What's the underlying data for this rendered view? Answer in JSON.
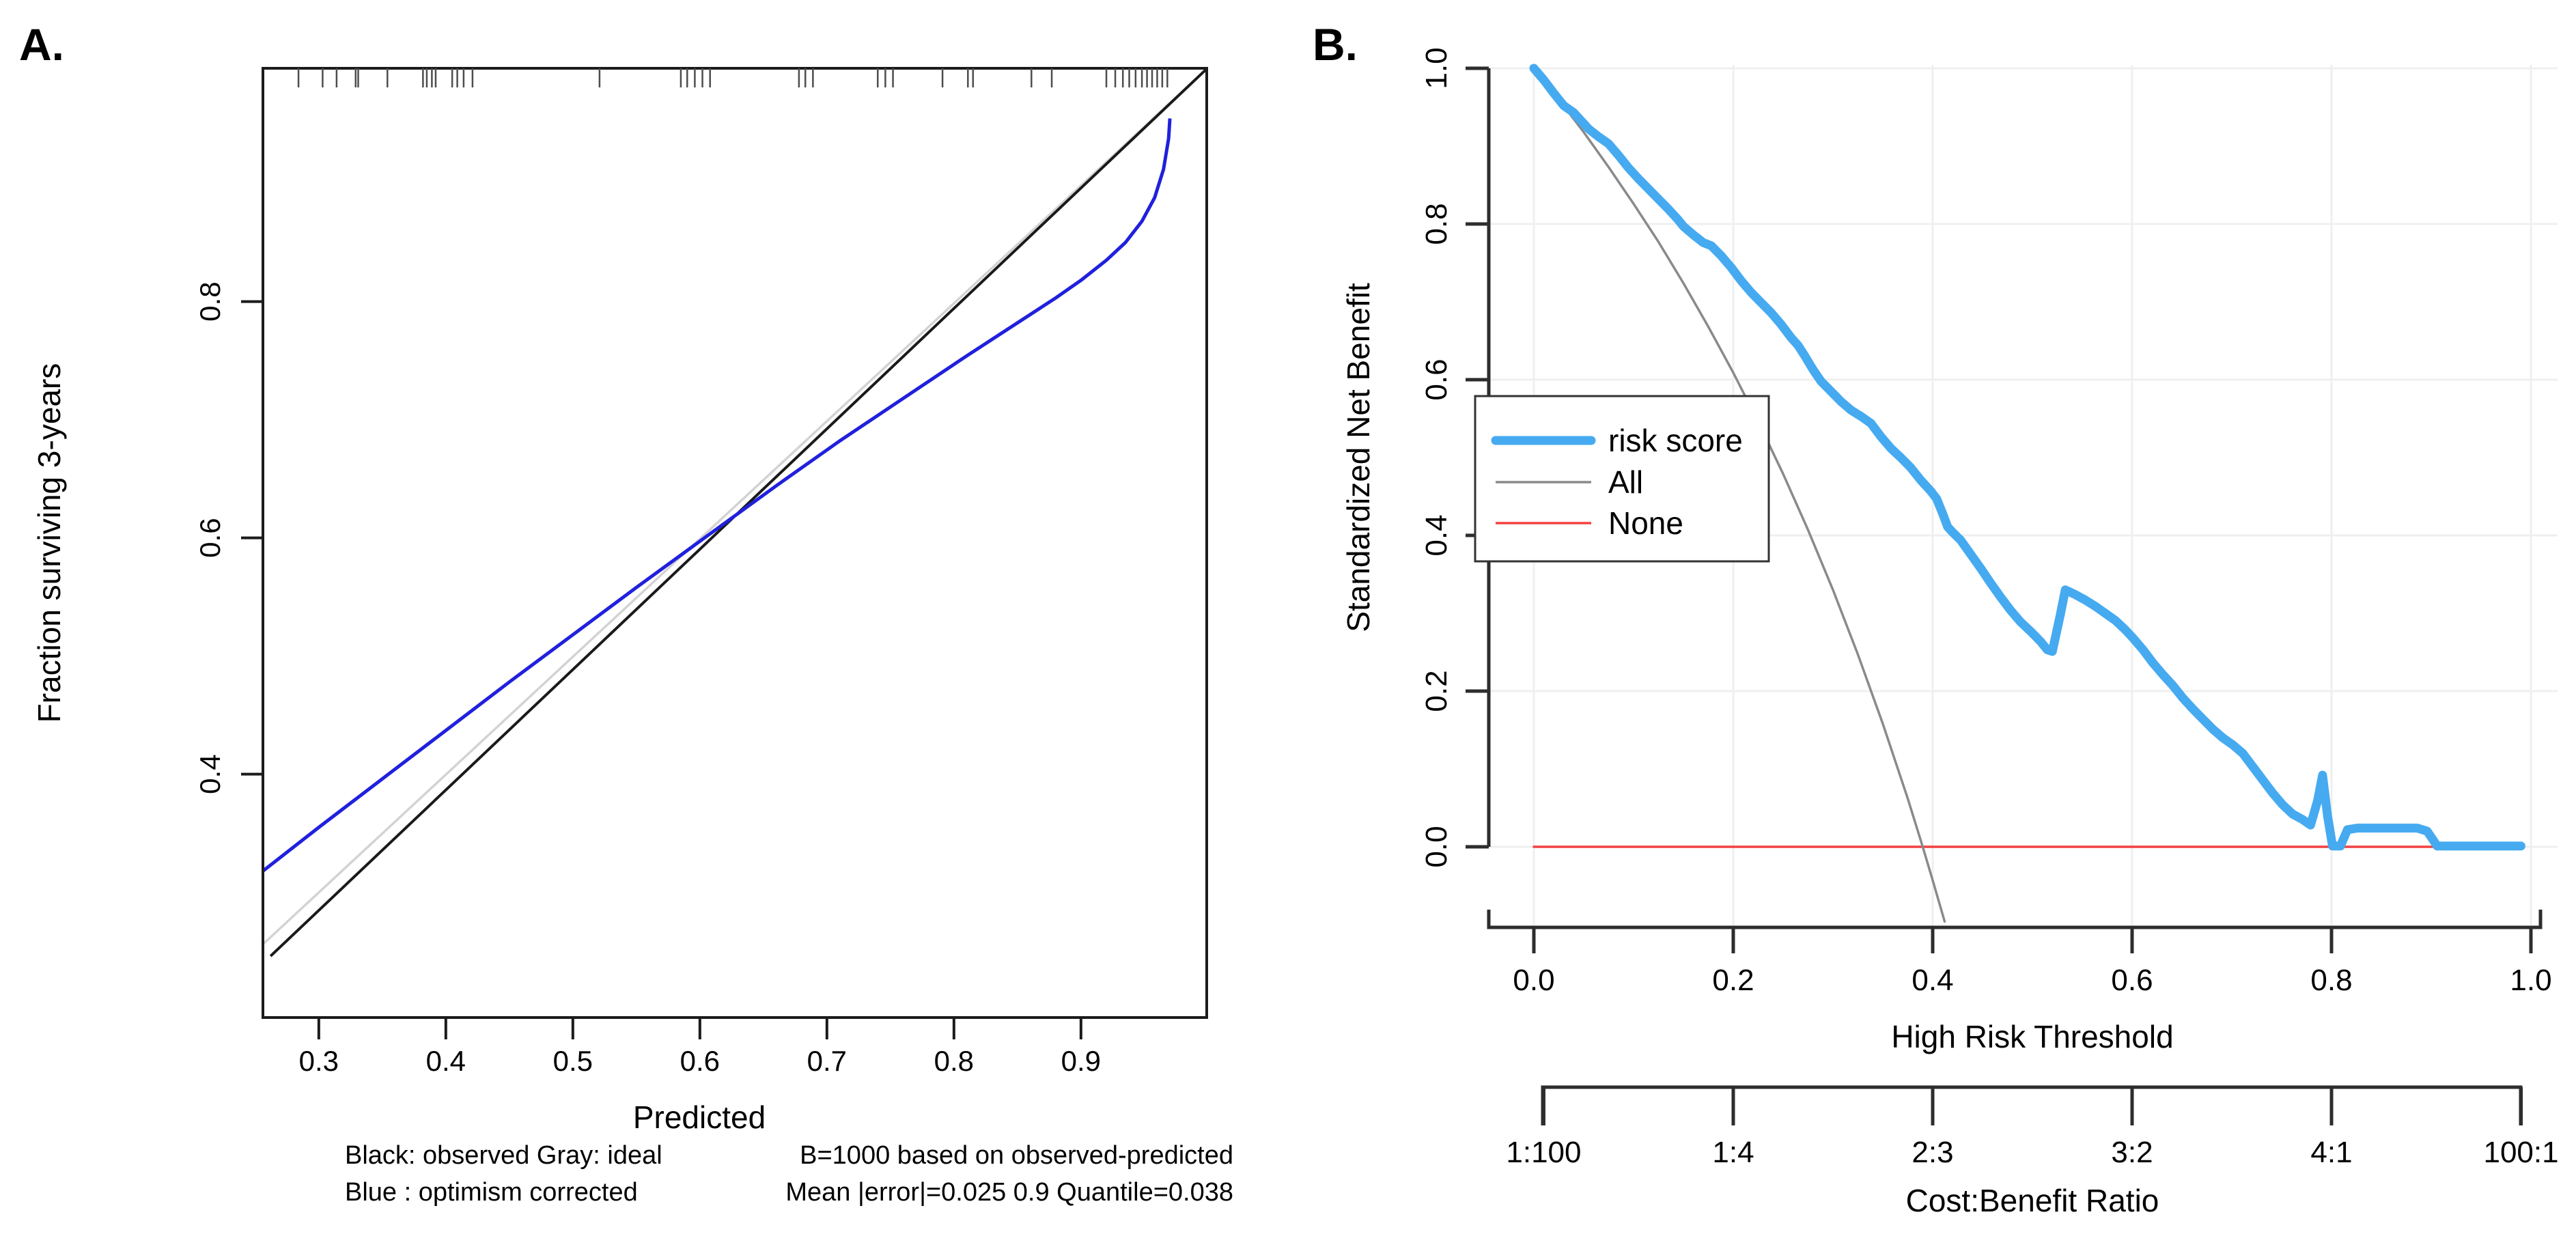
{
  "figure": {
    "panel_a_label": "A.",
    "panel_b_label": "B."
  },
  "chart_data": [
    {
      "id": "calibration_plot",
      "type": "line",
      "panel": "A.",
      "xlabel": "Predicted",
      "ylabel": "Fraction surviving 3-years",
      "x_ticks": [
        0.3,
        0.4,
        0.5,
        0.6,
        0.7,
        0.8,
        0.9
      ],
      "y_ticks": [
        0.4,
        0.6,
        0.8
      ],
      "x_range": [
        0.256,
        0.999
      ],
      "y_range": [
        0.194,
        0.997
      ],
      "grid": false,
      "captions": {
        "left_line1": "Black: observed  Gray: ideal",
        "left_line2": "Blue : optimism corrected",
        "right_line1": "B=1000 based on observed-predicted",
        "right_line2": "Mean |error|=0.025  0.9 Quantile=0.038"
      },
      "rug_x": [
        0.284,
        0.303,
        0.314,
        0.329,
        0.331,
        0.354,
        0.382,
        0.385,
        0.389,
        0.392,
        0.405,
        0.409,
        0.414,
        0.421,
        0.521,
        0.585,
        0.59,
        0.596,
        0.602,
        0.608,
        0.678,
        0.683,
        0.689,
        0.74,
        0.746,
        0.752,
        0.791,
        0.811,
        0.815,
        0.861,
        0.877,
        0.92,
        0.927,
        0.933,
        0.938,
        0.943,
        0.948,
        0.952,
        0.956,
        0.96,
        0.964,
        0.968
      ],
      "series": [
        {
          "name": "ideal",
          "color": "#d3d3d3",
          "width": 3.5,
          "points": [
            [
              0.256,
              0.256
            ],
            [
              0.999,
              0.997
            ]
          ]
        },
        {
          "name": "observed",
          "color": "#1a1a1a",
          "width": 4,
          "points": [
            [
              0.262,
              0.246
            ],
            [
              0.999,
              0.997
            ]
          ]
        },
        {
          "name": "optimism corrected",
          "color": "#2020dd",
          "width": 5,
          "points": [
            [
              0.256,
              0.318
            ],
            [
              0.3,
              0.355
            ],
            [
              0.35,
              0.396
            ],
            [
              0.4,
              0.437
            ],
            [
              0.45,
              0.478
            ],
            [
              0.5,
              0.518
            ],
            [
              0.55,
              0.558
            ],
            [
              0.61,
              0.605
            ],
            [
              0.66,
              0.644
            ],
            [
              0.71,
              0.682
            ],
            [
              0.76,
              0.718
            ],
            [
              0.81,
              0.754
            ],
            [
              0.85,
              0.782
            ],
            [
              0.88,
              0.803
            ],
            [
              0.9,
              0.818
            ],
            [
              0.92,
              0.835
            ],
            [
              0.935,
              0.85
            ],
            [
              0.948,
              0.868
            ],
            [
              0.958,
              0.888
            ],
            [
              0.965,
              0.912
            ],
            [
              0.969,
              0.938
            ],
            [
              0.97,
              0.955
            ]
          ]
        }
      ]
    },
    {
      "id": "decision_curve_analysis",
      "type": "line",
      "panel": "B.",
      "xlabel": "High Risk Threshold",
      "ylabel": "Standardized Net Benefit",
      "x_ticks": [
        0.0,
        0.2,
        0.4,
        0.6,
        0.8,
        1.0
      ],
      "y_ticks": [
        0.0,
        0.2,
        0.4,
        0.6,
        0.8,
        1.0
      ],
      "x_range": [
        0.0,
        1.0
      ],
      "y_range": [
        -0.1,
        1.0
      ],
      "grid": true,
      "secondary_axis": {
        "label": "Cost:Benefit Ratio",
        "ticks": [
          {
            "pos": 0.0099,
            "label": "1:100"
          },
          {
            "pos": 0.2,
            "label": "1:4"
          },
          {
            "pos": 0.4,
            "label": "2:3"
          },
          {
            "pos": 0.6,
            "label": "3:2"
          },
          {
            "pos": 0.8,
            "label": "4:1"
          },
          {
            "pos": 0.9901,
            "label": "100:1"
          }
        ]
      },
      "legend": {
        "position": "left-middle",
        "entries": [
          {
            "label": "risk score",
            "color": "#46aaf0",
            "width": 13
          },
          {
            "label": "All",
            "color": "#8a8a8a",
            "width": 3.5
          },
          {
            "label": "None",
            "color": "#f24141",
            "width": 3.5
          }
        ]
      },
      "series": [
        {
          "name": "None",
          "color": "#f24141",
          "width": 3.5,
          "points": [
            [
              0.0,
              0.0
            ],
            [
              0.99,
              0.0
            ]
          ]
        },
        {
          "name": "All",
          "color": "#8a8a8a",
          "width": 3.5,
          "points": [
            [
              0.0,
              1.0
            ],
            [
              0.025,
              0.96
            ],
            [
              0.05,
              0.918
            ],
            [
              0.075,
              0.873
            ],
            [
              0.1,
              0.826
            ],
            [
              0.125,
              0.777
            ],
            [
              0.15,
              0.724
            ],
            [
              0.175,
              0.668
            ],
            [
              0.2,
              0.609
            ],
            [
              0.225,
              0.546
            ],
            [
              0.25,
              0.479
            ],
            [
              0.275,
              0.407
            ],
            [
              0.3,
              0.33
            ],
            [
              0.325,
              0.247
            ],
            [
              0.35,
              0.158
            ],
            [
              0.375,
              0.062
            ],
            [
              0.39,
              0.0
            ],
            [
              0.4,
              -0.043
            ],
            [
              0.412,
              -0.096
            ]
          ]
        },
        {
          "name": "risk score",
          "color": "#46aaf0",
          "width": 13,
          "points": [
            [
              0.0,
              1.0
            ],
            [
              0.01,
              0.985
            ],
            [
              0.02,
              0.968
            ],
            [
              0.03,
              0.952
            ],
            [
              0.04,
              0.943
            ],
            [
              0.05,
              0.929
            ],
            [
              0.055,
              0.922
            ],
            [
              0.065,
              0.912
            ],
            [
              0.075,
              0.903
            ],
            [
              0.085,
              0.888
            ],
            [
              0.095,
              0.872
            ],
            [
              0.105,
              0.858
            ],
            [
              0.115,
              0.845
            ],
            [
              0.125,
              0.832
            ],
            [
              0.135,
              0.819
            ],
            [
              0.145,
              0.805
            ],
            [
              0.15,
              0.797
            ],
            [
              0.16,
              0.786
            ],
            [
              0.17,
              0.776
            ],
            [
              0.178,
              0.772
            ],
            [
              0.188,
              0.759
            ],
            [
              0.198,
              0.744
            ],
            [
              0.208,
              0.727
            ],
            [
              0.218,
              0.712
            ],
            [
              0.228,
              0.699
            ],
            [
              0.238,
              0.686
            ],
            [
              0.248,
              0.671
            ],
            [
              0.258,
              0.654
            ],
            [
              0.265,
              0.644
            ],
            [
              0.272,
              0.63
            ],
            [
              0.28,
              0.613
            ],
            [
              0.288,
              0.598
            ],
            [
              0.298,
              0.585
            ],
            [
              0.308,
              0.572
            ],
            [
              0.318,
              0.561
            ],
            [
              0.328,
              0.553
            ],
            [
              0.338,
              0.544
            ],
            [
              0.348,
              0.527
            ],
            [
              0.358,
              0.512
            ],
            [
              0.368,
              0.5
            ],
            [
              0.378,
              0.487
            ],
            [
              0.388,
              0.471
            ],
            [
              0.398,
              0.457
            ],
            [
              0.404,
              0.447
            ],
            [
              0.41,
              0.428
            ],
            [
              0.415,
              0.411
            ],
            [
              0.42,
              0.404
            ],
            [
              0.428,
              0.394
            ],
            [
              0.438,
              0.376
            ],
            [
              0.448,
              0.358
            ],
            [
              0.458,
              0.339
            ],
            [
              0.468,
              0.321
            ],
            [
              0.478,
              0.304
            ],
            [
              0.488,
              0.289
            ],
            [
              0.498,
              0.277
            ],
            [
              0.508,
              0.264
            ],
            [
              0.515,
              0.253
            ],
            [
              0.52,
              0.251
            ],
            [
              0.528,
              0.298
            ],
            [
              0.533,
              0.33
            ],
            [
              0.543,
              0.324
            ],
            [
              0.553,
              0.317
            ],
            [
              0.563,
              0.309
            ],
            [
              0.573,
              0.3
            ],
            [
              0.583,
              0.291
            ],
            [
              0.593,
              0.279
            ],
            [
              0.601,
              0.268
            ],
            [
              0.611,
              0.253
            ],
            [
              0.621,
              0.236
            ],
            [
              0.631,
              0.221
            ],
            [
              0.641,
              0.207
            ],
            [
              0.651,
              0.191
            ],
            [
              0.661,
              0.177
            ],
            [
              0.671,
              0.164
            ],
            [
              0.681,
              0.151
            ],
            [
              0.691,
              0.14
            ],
            [
              0.701,
              0.131
            ],
            [
              0.711,
              0.12
            ],
            [
              0.721,
              0.103
            ],
            [
              0.731,
              0.086
            ],
            [
              0.741,
              0.069
            ],
            [
              0.751,
              0.054
            ],
            [
              0.761,
              0.042
            ],
            [
              0.771,
              0.035
            ],
            [
              0.779,
              0.028
            ],
            [
              0.786,
              0.059
            ],
            [
              0.791,
              0.092
            ],
            [
              0.796,
              0.04
            ],
            [
              0.801,
              0.001
            ],
            [
              0.809,
              0.001
            ],
            [
              0.816,
              0.022
            ],
            [
              0.826,
              0.024
            ],
            [
              0.886,
              0.024
            ],
            [
              0.896,
              0.02
            ],
            [
              0.906,
              0.001
            ],
            [
              0.99,
              0.001
            ]
          ]
        }
      ]
    }
  ]
}
